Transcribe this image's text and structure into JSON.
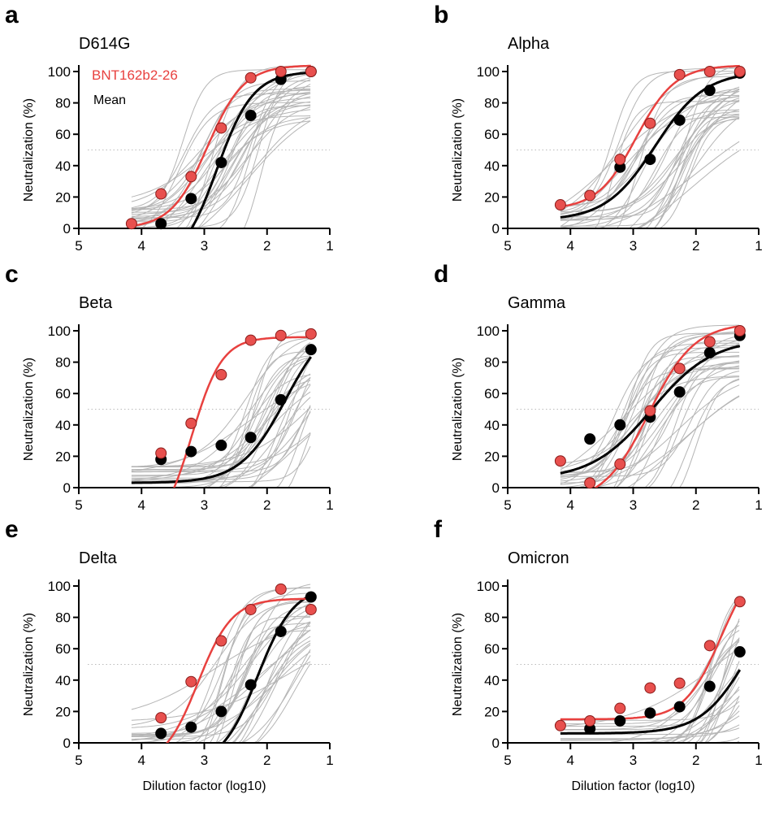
{
  "shared": {
    "ylabel": "Neutralization (%)",
    "xlabel": "Dilution factor (log10)",
    "xlim": [
      5,
      1
    ],
    "ylim": [
      0,
      100
    ],
    "xticks": [
      5,
      4,
      3,
      2,
      1
    ],
    "yticks": [
      0,
      20,
      40,
      60,
      80,
      100
    ],
    "x_reversed": true,
    "reference_line_y": 50,
    "colors": {
      "BNT162b2-26": "#e8413f",
      "Mean": "#000000",
      "individual": "#b5b5b5"
    }
  },
  "legend": [
    "BNT162b2-26",
    "Mean"
  ],
  "chart_data": [
    {
      "panel": "a",
      "title": "D614G",
      "type": "scatter+line",
      "x": [
        4.16,
        3.69,
        3.21,
        2.73,
        2.26,
        1.78,
        1.3
      ],
      "series": [
        {
          "name": "BNT162b2-26",
          "values": [
            3,
            22,
            33,
            64,
            96,
            100,
            100
          ],
          "fit": {
            "bottom": 0,
            "top": 104,
            "logIC50": 2.95,
            "hill": 1.5
          }
        },
        {
          "name": "Mean",
          "values": [
            null,
            3,
            19,
            42,
            72,
            95,
            100
          ],
          "fit": {
            "bottom": -25,
            "top": 100,
            "logIC50": 2.8,
            "hill": 1.5
          }
        }
      ]
    },
    {
      "panel": "b",
      "title": "Alpha",
      "type": "scatter+line",
      "x": [
        4.16,
        3.69,
        3.21,
        2.73,
        2.26,
        1.78,
        1.3
      ],
      "series": [
        {
          "name": "BNT162b2-26",
          "values": [
            15,
            21,
            44,
            67,
            98,
            100,
            100
          ],
          "fit": {
            "bottom": 12,
            "top": 104,
            "logIC50": 2.95,
            "hill": 1.4
          }
        },
        {
          "name": "Mean",
          "values": [
            null,
            null,
            39,
            44,
            69,
            88,
            99
          ],
          "fit": {
            "bottom": 5,
            "top": 100,
            "logIC50": 2.65,
            "hill": 1.1
          }
        }
      ]
    },
    {
      "panel": "c",
      "title": "Beta",
      "type": "scatter+line",
      "x": [
        4.16,
        3.69,
        3.21,
        2.73,
        2.26,
        1.78,
        1.3
      ],
      "series": [
        {
          "name": "BNT162b2-26",
          "values": [
            null,
            22,
            41,
            72,
            94,
            97,
            98
          ],
          "fit": {
            "bottom": -30,
            "top": 96,
            "logIC50": 3.2,
            "hill": 1.8
          }
        },
        {
          "name": "Mean",
          "values": [
            null,
            18,
            23,
            27,
            32,
            56,
            88
          ],
          "fit": {
            "bottom": 3,
            "top": 110,
            "logIC50": 1.7,
            "hill": 1.2
          }
        }
      ]
    },
    {
      "panel": "d",
      "title": "Gamma",
      "type": "scatter+line",
      "x": [
        4.16,
        3.69,
        3.21,
        2.73,
        2.26,
        1.78,
        1.3
      ],
      "series": [
        {
          "name": "BNT162b2-26",
          "values": [
            17,
            3,
            15,
            49,
            76,
            93,
            100
          ],
          "fit": {
            "bottom": -10,
            "top": 105,
            "logIC50": 2.75,
            "hill": 1.2
          }
        },
        {
          "name": "Mean",
          "values": [
            null,
            31,
            40,
            45,
            61,
            86,
            97
          ],
          "fit": {
            "bottom": 5,
            "top": 95,
            "logIC50": 2.7,
            "hill": 0.9
          }
        }
      ]
    },
    {
      "panel": "e",
      "title": "Delta",
      "type": "scatter+line",
      "x": [
        4.16,
        3.69,
        3.21,
        2.73,
        2.26,
        1.78,
        1.3
      ],
      "series": [
        {
          "name": "BNT162b2-26",
          "values": [
            null,
            16,
            39,
            65,
            85,
            98,
            85
          ],
          "fit": {
            "bottom": -15,
            "top": 92,
            "logIC50": 3.1,
            "hill": 1.6
          }
        },
        {
          "name": "Mean",
          "values": [
            null,
            6,
            10,
            20,
            37,
            71,
            93
          ],
          "fit": {
            "bottom": -15,
            "top": 100,
            "logIC50": 2.15,
            "hill": 1.5
          }
        }
      ]
    },
    {
      "panel": "f",
      "title": "Omicron",
      "type": "scatter+line",
      "x": [
        4.16,
        3.69,
        3.21,
        2.73,
        2.26,
        1.78,
        1.3
      ],
      "series": [
        {
          "name": "BNT162b2-26",
          "values": [
            11,
            14,
            22,
            35,
            38,
            62,
            90
          ],
          "fit": {
            "bottom": 15,
            "top": 120,
            "logIC50": 1.6,
            "hill": 1.5
          }
        },
        {
          "name": "Mean",
          "values": [
            null,
            9,
            14,
            19,
            23,
            36,
            58
          ],
          "fit": {
            "bottom": 6,
            "top": 100,
            "logIC50": 1.2,
            "hill": 1.2
          }
        }
      ]
    }
  ]
}
